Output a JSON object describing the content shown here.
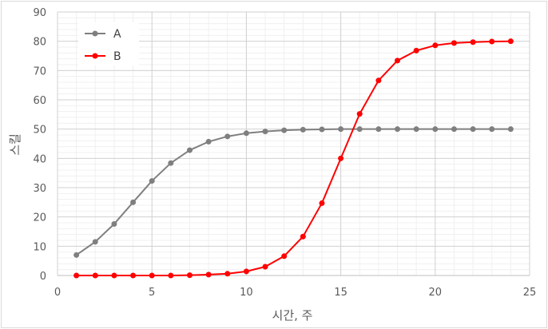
{
  "chart_data": {
    "type": "line",
    "xlabel": "시간, 주",
    "ylabel": "스킬",
    "xlim": [
      0,
      25
    ],
    "ylim": [
      0,
      90
    ],
    "xticks": [
      0,
      5,
      10,
      15,
      20,
      25
    ],
    "yticks": [
      0,
      10,
      20,
      30,
      40,
      50,
      60,
      70,
      80,
      90
    ],
    "grid": true,
    "legend_position": "top-left",
    "x": [
      1,
      2,
      3,
      4,
      5,
      6,
      7,
      8,
      9,
      10,
      11,
      12,
      13,
      14,
      15,
      16,
      17,
      18,
      19,
      20,
      21,
      22,
      23,
      24
    ],
    "series": [
      {
        "name": "A",
        "color": "#7f7f7f",
        "values": [
          7.0,
          11.5,
          17.6,
          25.0,
          32.3,
          38.4,
          42.8,
          45.7,
          47.5,
          48.6,
          49.2,
          49.6,
          49.8,
          49.9,
          50.0,
          50.0,
          50.0,
          50.0,
          50.0,
          50.0,
          50.0,
          50.0,
          50.0,
          50.0
        ]
      },
      {
        "name": "B",
        "color": "#ff0000",
        "values": [
          0.0,
          0.0,
          0.0,
          0.0,
          0.0,
          0.0,
          0.1,
          0.3,
          0.6,
          1.4,
          3.0,
          6.6,
          13.3,
          24.7,
          40.0,
          55.2,
          66.6,
          73.4,
          76.8,
          78.6,
          79.4,
          79.7,
          79.9,
          80.0
        ]
      }
    ]
  }
}
